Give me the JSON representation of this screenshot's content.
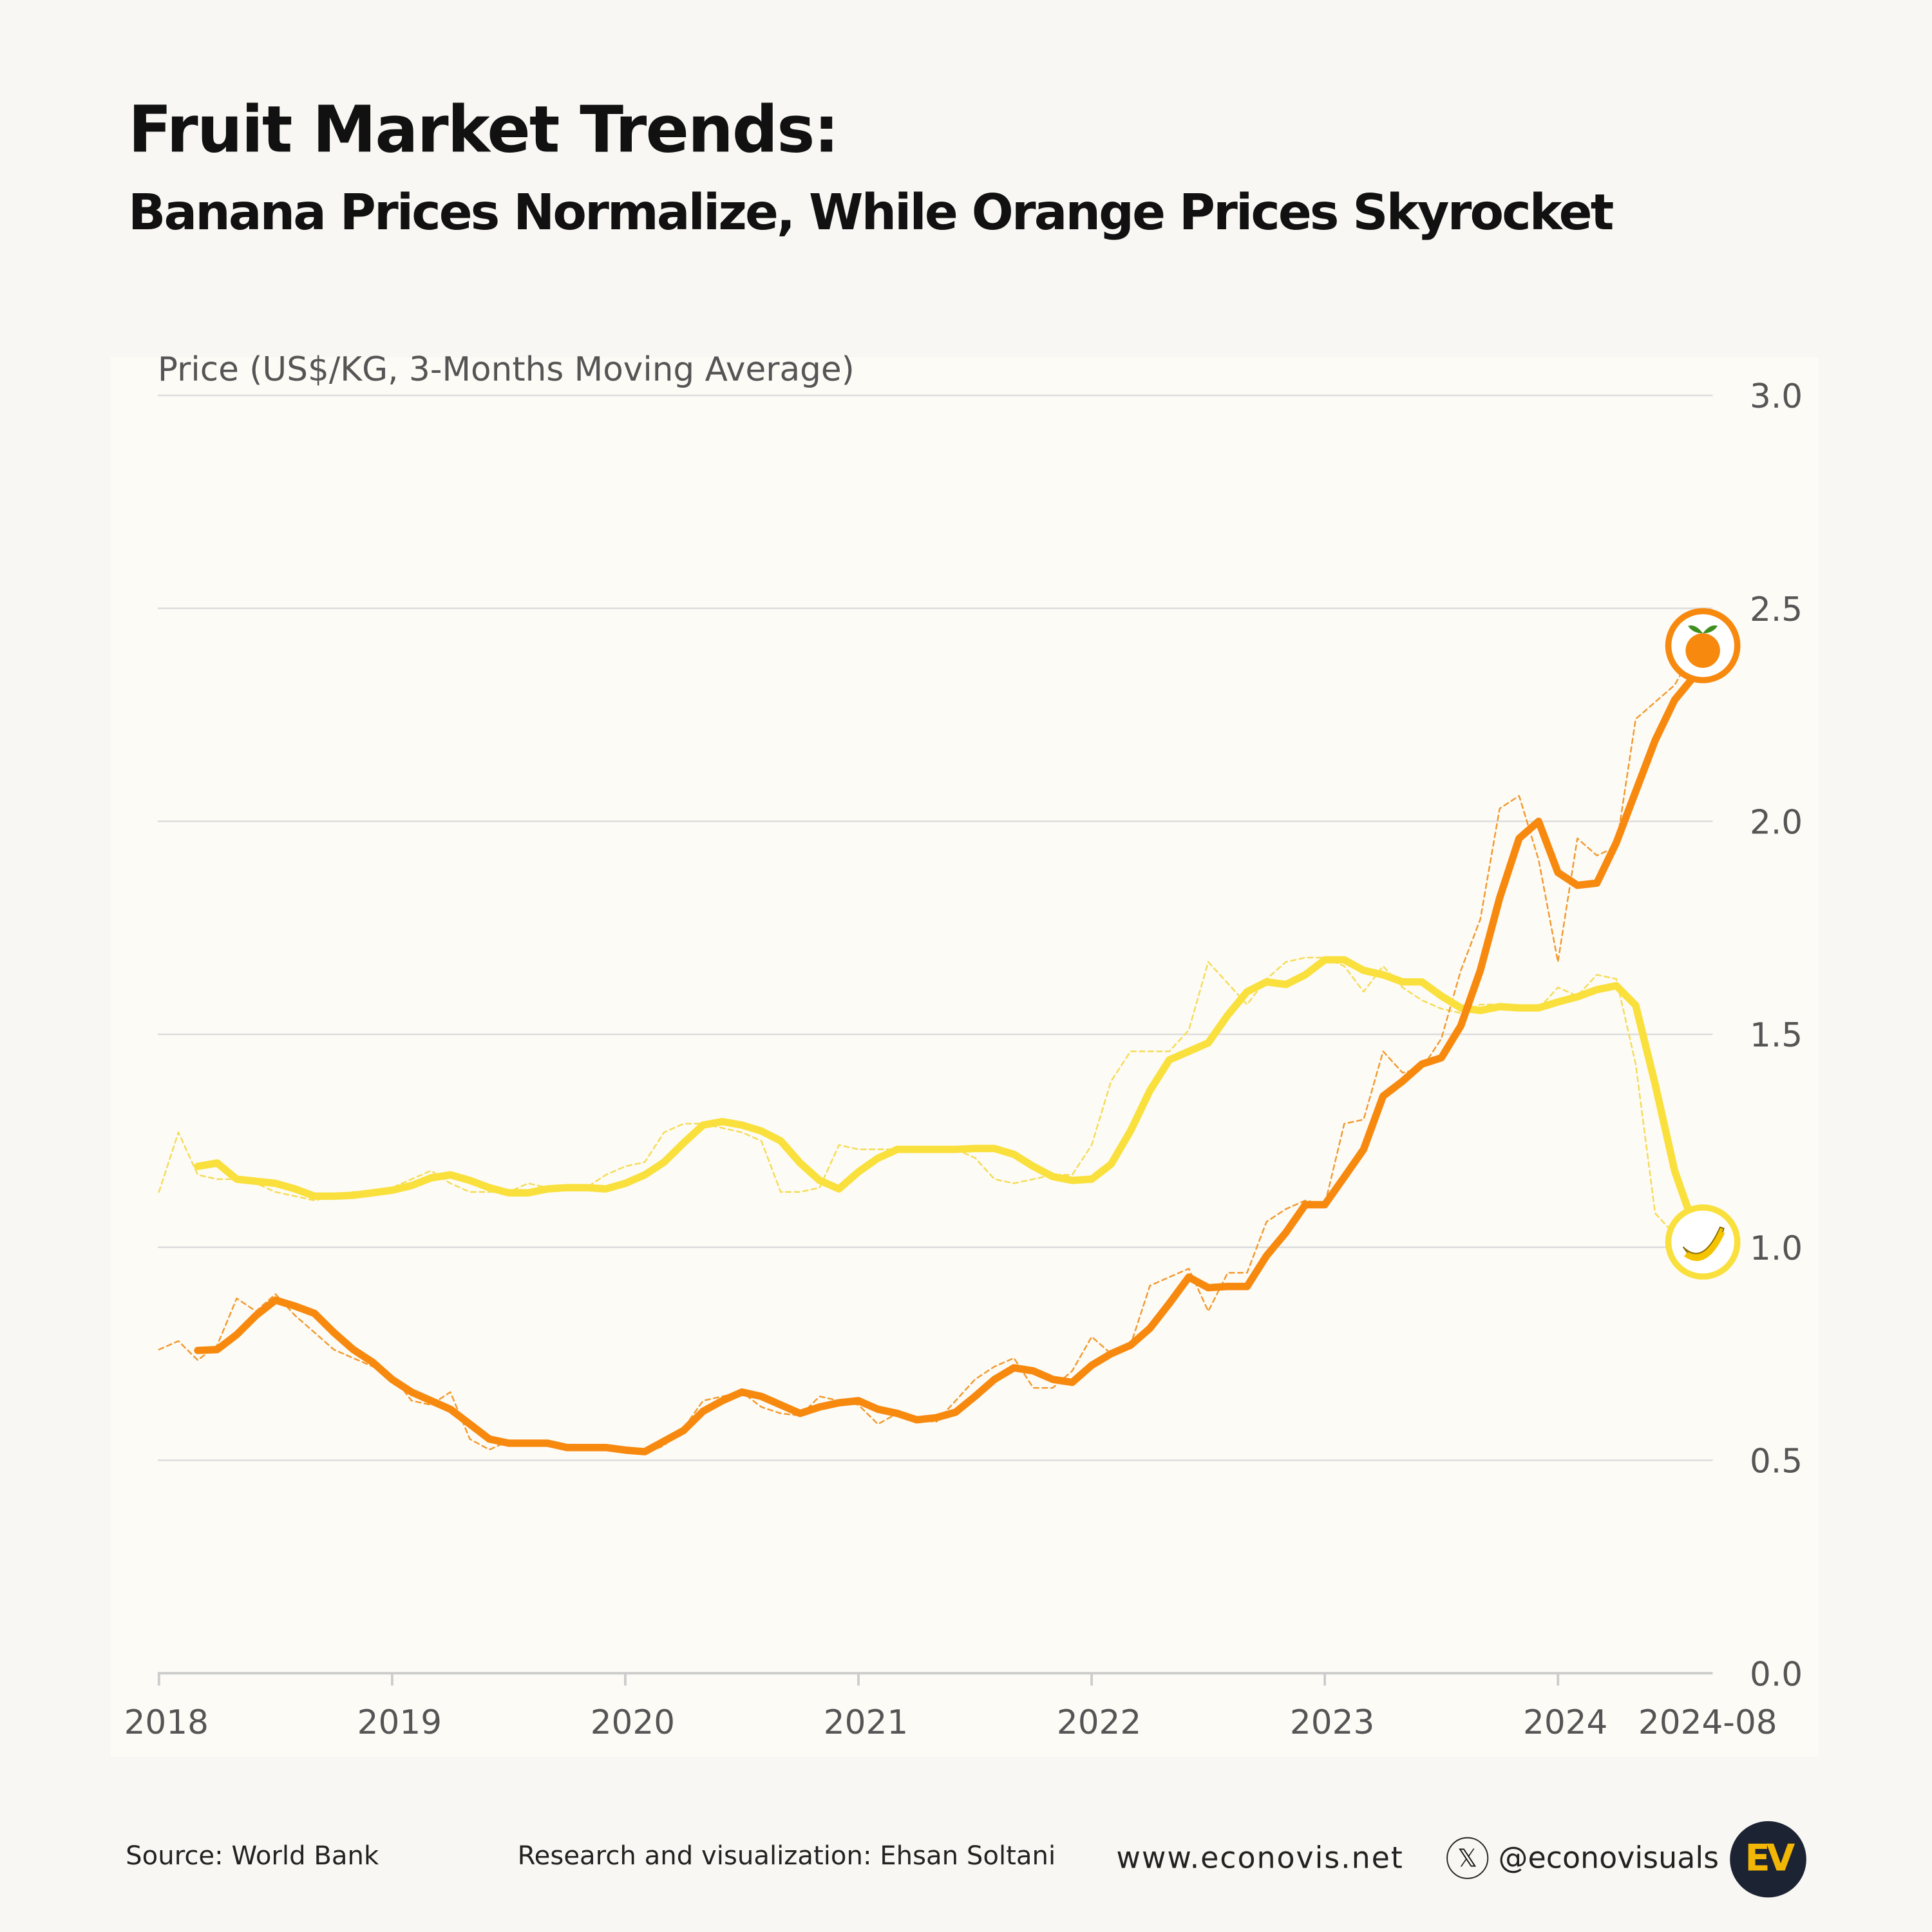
{
  "header": {
    "title": "Fruit Market Trends:",
    "subtitle": "Banana Prices Normalize, While Orange Prices Skyrocket"
  },
  "chart_data": {
    "type": "line",
    "ylabel": "Price (US$/KG, 3-Months Moving Average)",
    "ylim": [
      0,
      3.0
    ],
    "yticks": [
      "0.0",
      "0.5",
      "1.0",
      "1.5",
      "2.0",
      "2.5",
      "3.0"
    ],
    "xticks": [
      "2018",
      "2019",
      "2020",
      "2021",
      "2022",
      "2023",
      "2024",
      "2024-08"
    ],
    "x_range": [
      "2018-01",
      "2024-08"
    ],
    "grid": true,
    "colors": {
      "orange": "#f7890f",
      "banana": "#f9e03c",
      "orange_raw": "#f29a2e",
      "banana_raw": "#f5dc55"
    },
    "series": [
      {
        "key": "orange_ma",
        "icon": "orange-icon",
        "start": "2018-03",
        "values": [
          0.758,
          0.76,
          0.795,
          0.84,
          0.876,
          0.862,
          0.845,
          0.8,
          0.76,
          0.73,
          0.69,
          0.66,
          0.64,
          0.62,
          0.585,
          0.55,
          0.54,
          0.54,
          0.54,
          0.53,
          0.53,
          0.53,
          0.524,
          0.52,
          0.545,
          0.57,
          0.615,
          0.64,
          0.66,
          0.65,
          0.63,
          0.61,
          0.625,
          0.635,
          0.64,
          0.62,
          0.61,
          0.595,
          0.6,
          0.613,
          0.65,
          0.69,
          0.717,
          0.71,
          0.69,
          0.683,
          0.723,
          0.75,
          0.77,
          0.81,
          0.868,
          0.93,
          0.905,
          0.908,
          0.908,
          0.98,
          1.035,
          1.1,
          1.1,
          1.165,
          1.23,
          1.355,
          1.39,
          1.43,
          1.445,
          1.52,
          1.65,
          1.82,
          1.96,
          2.0,
          1.88,
          1.85,
          1.855,
          1.95,
          2.07,
          2.19,
          2.285,
          2.34
        ]
      },
      {
        "key": "orange_raw",
        "start": "2018-01",
        "values": [
          0.76,
          0.78,
          0.735,
          0.77,
          0.88,
          0.85,
          0.89,
          0.84,
          0.8,
          0.76,
          0.74,
          0.72,
          0.7,
          0.64,
          0.63,
          0.66,
          0.55,
          0.525,
          0.545,
          0.54,
          0.54,
          0.525,
          0.53,
          0.525,
          0.52,
          0.515,
          0.535,
          0.575,
          0.64,
          0.65,
          0.66,
          0.625,
          0.61,
          0.605,
          0.65,
          0.64,
          0.63,
          0.585,
          0.61,
          0.595,
          0.59,
          0.64,
          0.69,
          0.72,
          0.74,
          0.67,
          0.67,
          0.71,
          0.79,
          0.75,
          0.77,
          0.91,
          0.93,
          0.95,
          0.85,
          0.94,
          0.94,
          1.06,
          1.09,
          1.11,
          1.1,
          1.29,
          1.3,
          1.46,
          1.41,
          1.42,
          1.49,
          1.65,
          1.77,
          2.03,
          2.06,
          1.91,
          1.67,
          1.96,
          1.92,
          1.94,
          2.24,
          2.28,
          2.32,
          2.4
        ]
      },
      {
        "key": "banana_ma",
        "icon": "banana-icon",
        "start": "2018-03",
        "values": [
          1.19,
          1.198,
          1.16,
          1.155,
          1.15,
          1.137,
          1.12,
          1.12,
          1.122,
          1.128,
          1.134,
          1.145,
          1.163,
          1.17,
          1.157,
          1.14,
          1.128,
          1.128,
          1.137,
          1.14,
          1.14,
          1.137,
          1.15,
          1.17,
          1.2,
          1.245,
          1.287,
          1.295,
          1.287,
          1.273,
          1.25,
          1.198,
          1.157,
          1.137,
          1.177,
          1.209,
          1.23,
          1.23,
          1.23,
          1.23,
          1.232,
          1.232,
          1.218,
          1.19,
          1.166,
          1.157,
          1.16,
          1.195,
          1.273,
          1.368,
          1.44,
          1.46,
          1.48,
          1.545,
          1.6,
          1.623,
          1.617,
          1.64,
          1.675,
          1.675,
          1.65,
          1.64,
          1.623,
          1.623,
          1.59,
          1.562,
          1.556,
          1.565,
          1.562,
          1.562,
          1.576,
          1.588,
          1.605,
          1.614,
          1.568,
          1.383,
          1.18,
          1.05
        ]
      },
      {
        "key": "banana_raw",
        "start": "2018-01",
        "values": [
          1.13,
          1.27,
          1.17,
          1.16,
          1.16,
          1.15,
          1.13,
          1.12,
          1.11,
          1.12,
          1.13,
          1.13,
          1.14,
          1.16,
          1.18,
          1.15,
          1.13,
          1.13,
          1.13,
          1.15,
          1.14,
          1.14,
          1.14,
          1.17,
          1.19,
          1.2,
          1.27,
          1.29,
          1.29,
          1.28,
          1.27,
          1.25,
          1.13,
          1.13,
          1.14,
          1.24,
          1.23,
          1.23,
          1.23,
          1.23,
          1.23,
          1.23,
          1.21,
          1.16,
          1.15,
          1.16,
          1.17,
          1.17,
          1.24,
          1.39,
          1.46,
          1.46,
          1.46,
          1.51,
          1.67,
          1.62,
          1.57,
          1.63,
          1.67,
          1.68,
          1.68,
          1.66,
          1.6,
          1.66,
          1.61,
          1.58,
          1.56,
          1.55,
          1.57,
          1.57,
          1.56,
          1.56,
          1.61,
          1.59,
          1.64,
          1.63,
          1.43,
          1.08,
          1.03,
          1.04
        ]
      }
    ]
  },
  "footer": {
    "source": "Source: World Bank",
    "credit": "Research and visualization: Ehsan Soltani",
    "website": "www.econovis.net",
    "x_symbol": "𝕏",
    "handle": "@econovisuals",
    "logo_text": "EV"
  }
}
